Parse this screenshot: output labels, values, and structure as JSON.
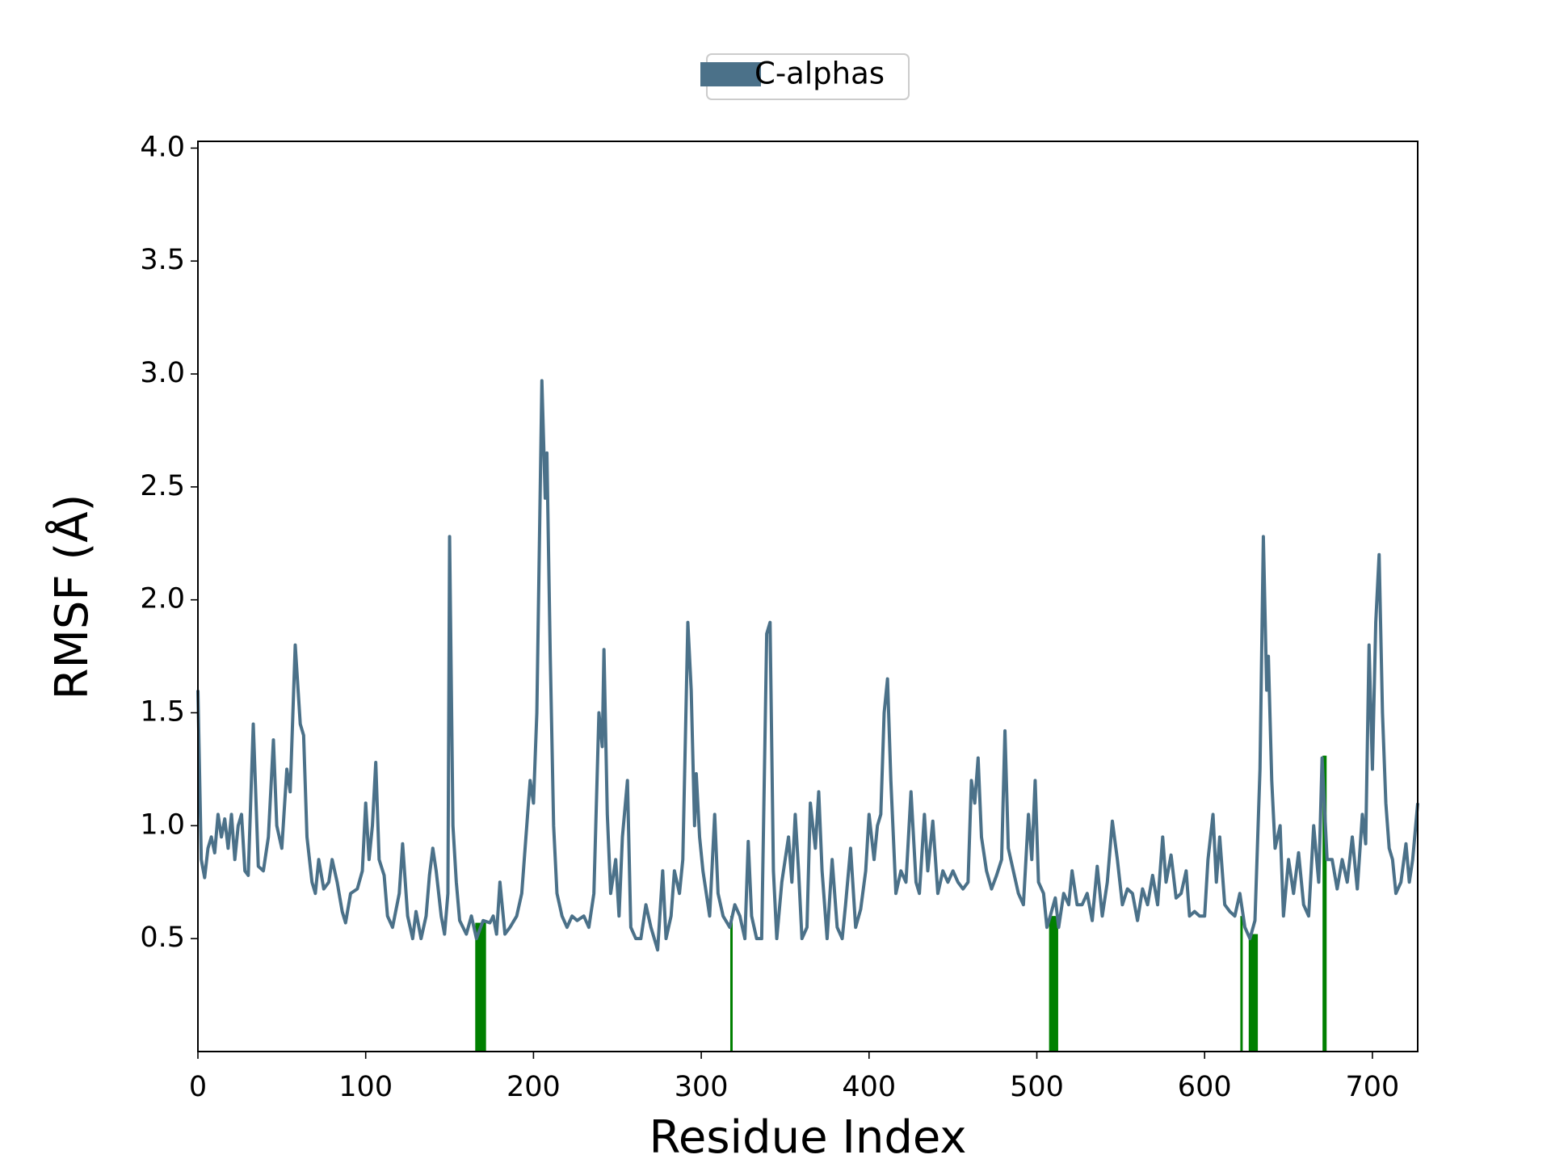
{
  "chart_data": {
    "type": "line",
    "xlabel": "Residue Index",
    "ylabel": "RMSF (Å)",
    "xlim": [
      0,
      727
    ],
    "ylim": [
      0,
      4.03
    ],
    "xticks": [
      0,
      100,
      200,
      300,
      400,
      500,
      600,
      700
    ],
    "yticks": [
      0.5,
      {
        "value": 1,
        "label": "1.0"
      },
      1.5,
      {
        "value": 2,
        "label": "2.0"
      },
      2.5,
      {
        "value": 3,
        "label": "3.0"
      },
      3.5,
      {
        "value": 4,
        "label": "4.0"
      }
    ],
    "legend": "top-center",
    "x": [
      0,
      2,
      4,
      6,
      8,
      10,
      12,
      14,
      16,
      18,
      20,
      22,
      24,
      26,
      28,
      30,
      33,
      36,
      39,
      42,
      45,
      47,
      50,
      53,
      55,
      58,
      61,
      63,
      65,
      68,
      70,
      72,
      75,
      78,
      80,
      83,
      86,
      88,
      91,
      95,
      98,
      100,
      102,
      104,
      106,
      108,
      111,
      113,
      116,
      120,
      122,
      125,
      128,
      130,
      133,
      136,
      138,
      140,
      142,
      145,
      147,
      149,
      150,
      152,
      154,
      156,
      160,
      163,
      166,
      170,
      174,
      176,
      178,
      180,
      183,
      186,
      190,
      193,
      195,
      198,
      200,
      202,
      205,
      207,
      208,
      210,
      212,
      214,
      217,
      220,
      223,
      226,
      230,
      233,
      236,
      239,
      241,
      242,
      244,
      246,
      249,
      251,
      253,
      256,
      258,
      261,
      264,
      267,
      270,
      274,
      277,
      279,
      282,
      284,
      287,
      289,
      292,
      294,
      296,
      297,
      299,
      301,
      305,
      308,
      310,
      313,
      317,
      320,
      323,
      326,
      328,
      330,
      333,
      336,
      339,
      341,
      343,
      345,
      348,
      352,
      354,
      356,
      358,
      360,
      363,
      365,
      368,
      370,
      372,
      375,
      378,
      381,
      384,
      386,
      389,
      392,
      395,
      398,
      400,
      403,
      405,
      407,
      409,
      411,
      413,
      416,
      419,
      422,
      425,
      428,
      430,
      433,
      435,
      438,
      441,
      444,
      447,
      450,
      453,
      456,
      459,
      461,
      463,
      465,
      467,
      470,
      473,
      476,
      479,
      481,
      483,
      486,
      489,
      492,
      495,
      497,
      499,
      501,
      504,
      506,
      508,
      511,
      513,
      516,
      519,
      521,
      524,
      527,
      530,
      533,
      536,
      539,
      542,
      545,
      548,
      551,
      554,
      557,
      560,
      563,
      566,
      569,
      572,
      575,
      577,
      580,
      583,
      586,
      589,
      591,
      594,
      597,
      600,
      602,
      605,
      607,
      609,
      612,
      615,
      618,
      621,
      624,
      627,
      630,
      633,
      635,
      637,
      638,
      640,
      642,
      645,
      647,
      650,
      653,
      656,
      659,
      662,
      665,
      668,
      670,
      673,
      676,
      679,
      682,
      685,
      688,
      691,
      694,
      696,
      698,
      700,
      702,
      704,
      706,
      708,
      710,
      712,
      714,
      717,
      720,
      722,
      724,
      727
    ],
    "series": [
      {
        "name": "C-alphas",
        "color": "#4b7189",
        "values": [
          1.6,
          0.85,
          0.77,
          0.9,
          0.95,
          0.88,
          1.05,
          0.95,
          1.03,
          0.9,
          1.05,
          0.85,
          1.0,
          1.05,
          0.8,
          0.78,
          1.45,
          0.82,
          0.8,
          0.95,
          1.38,
          1.0,
          0.9,
          1.25,
          1.15,
          1.8,
          1.45,
          1.4,
          0.95,
          0.75,
          0.7,
          0.85,
          0.72,
          0.75,
          0.85,
          0.75,
          0.62,
          0.57,
          0.7,
          0.72,
          0.8,
          1.1,
          0.85,
          1.0,
          1.28,
          0.85,
          0.78,
          0.6,
          0.55,
          0.7,
          0.92,
          0.6,
          0.5,
          0.62,
          0.5,
          0.6,
          0.78,
          0.9,
          0.8,
          0.6,
          0.52,
          0.7,
          2.28,
          1.0,
          0.75,
          0.58,
          0.52,
          0.6,
          0.5,
          0.58,
          0.57,
          0.6,
          0.52,
          0.75,
          0.52,
          0.55,
          0.6,
          0.7,
          0.9,
          1.2,
          1.1,
          1.5,
          2.97,
          2.45,
          2.65,
          1.75,
          1.0,
          0.7,
          0.6,
          0.55,
          0.6,
          0.58,
          0.6,
          0.55,
          0.7,
          1.5,
          1.35,
          1.78,
          1.05,
          0.7,
          0.85,
          0.6,
          0.95,
          1.2,
          0.55,
          0.5,
          0.5,
          0.65,
          0.55,
          0.45,
          0.8,
          0.5,
          0.6,
          0.8,
          0.7,
          0.85,
          1.9,
          1.6,
          1.0,
          1.23,
          0.95,
          0.8,
          0.6,
          1.05,
          0.7,
          0.6,
          0.55,
          0.65,
          0.6,
          0.5,
          0.93,
          0.6,
          0.5,
          0.5,
          1.85,
          1.9,
          0.8,
          0.5,
          0.75,
          0.95,
          0.75,
          1.05,
          0.8,
          0.5,
          0.55,
          1.1,
          0.9,
          1.15,
          0.8,
          0.5,
          0.85,
          0.55,
          0.5,
          0.65,
          0.9,
          0.55,
          0.63,
          0.8,
          1.05,
          0.85,
          1.0,
          1.05,
          1.5,
          1.65,
          1.2,
          0.7,
          0.8,
          0.75,
          1.15,
          0.75,
          0.7,
          1.05,
          0.8,
          1.02,
          0.7,
          0.8,
          0.75,
          0.8,
          0.75,
          0.72,
          0.75,
          1.2,
          1.1,
          1.3,
          0.95,
          0.8,
          0.72,
          0.78,
          0.85,
          1.42,
          0.9,
          0.8,
          0.7,
          0.65,
          1.05,
          0.85,
          1.2,
          0.75,
          0.7,
          0.55,
          0.6,
          0.68,
          0.55,
          0.7,
          0.65,
          0.8,
          0.65,
          0.65,
          0.7,
          0.58,
          0.82,
          0.6,
          0.75,
          1.02,
          0.85,
          0.65,
          0.72,
          0.7,
          0.58,
          0.72,
          0.65,
          0.78,
          0.65,
          0.95,
          0.75,
          0.87,
          0.68,
          0.7,
          0.8,
          0.6,
          0.62,
          0.6,
          0.6,
          0.85,
          1.05,
          0.75,
          0.95,
          0.65,
          0.62,
          0.6,
          0.7,
          0.55,
          0.5,
          0.58,
          1.25,
          2.28,
          1.6,
          1.75,
          1.2,
          0.9,
          1.0,
          0.6,
          0.85,
          0.7,
          0.88,
          0.65,
          0.6,
          1.0,
          0.75,
          1.3,
          0.85,
          0.85,
          0.72,
          0.85,
          0.75,
          0.95,
          0.72,
          1.05,
          0.92,
          1.8,
          1.25,
          1.9,
          2.2,
          1.5,
          1.1,
          0.9,
          0.85,
          0.7,
          0.75,
          0.92,
          0.75,
          0.85,
          1.1
        ]
      }
    ],
    "contacts": {
      "color": "#008000",
      "x": [
        166,
        167,
        168,
        169,
        170,
        171,
        318,
        508,
        509,
        510,
        511,
        512,
        622,
        627,
        628,
        629,
        630,
        631,
        671,
        672
      ],
      "values": [
        0.57,
        0.57,
        0.57,
        0.57,
        0.57,
        0.57,
        0.6,
        0.6,
        0.6,
        0.6,
        0.6,
        0.6,
        0.6,
        0.52,
        0.52,
        0.52,
        0.52,
        0.52,
        1.31,
        1.31
      ]
    }
  }
}
